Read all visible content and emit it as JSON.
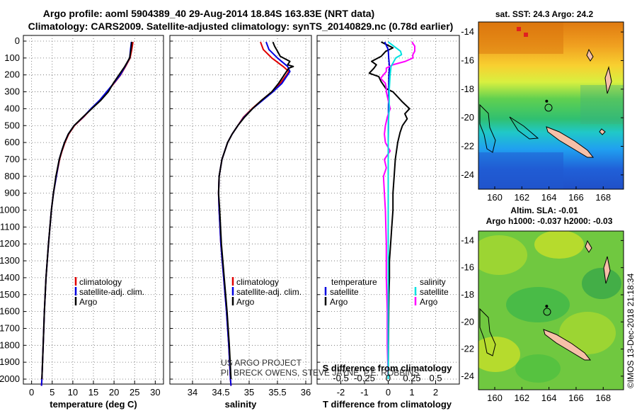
{
  "figure": {
    "title_line1": "Argo profile: aoml 5904389_40 29-Aug-2014 18.84S 163.83E (NRT data)",
    "title_line2": "Climatology: CARS2009. Satellite-adjusted climatology: synTS_20140829.nc (0.78d earlier)",
    "credit_line1": "US ARGO PROJECT",
    "credit_line2": "PI: BRECK OWENS, STEVE JAYNE, P.E. ROBBINS",
    "footer_stamp": "©IMOS 13-Dec-2018 21:18:34",
    "depth_ticks": [
      "0",
      "100",
      "200",
      "300",
      "400",
      "500",
      "600",
      "700",
      "800",
      "900",
      "1000",
      "1100",
      "1200",
      "1300",
      "1400",
      "1500",
      "1600",
      "1700",
      "1800",
      "1900",
      "2000"
    ]
  },
  "colors": {
    "climatology": "#e00000",
    "satellite": "#0000e0",
    "argo": "#000000",
    "sat_salinity": "#00e0e0",
    "argo_salinity": "#ff00ff"
  },
  "legend": {
    "climatology": "climatology",
    "satellite_adj": "satellite-adj. clim.",
    "argo": "Argo",
    "temperature": "temperature",
    "salinity": "salinity",
    "satellite": "satellite"
  },
  "chart_data": [
    {
      "type": "line",
      "title": "temperature profile",
      "xlabel": "temperature (deg C)",
      "ylabel": "depth",
      "xlim": [
        -2,
        32
      ],
      "ylim": [
        2050,
        0
      ],
      "xticks": [
        "0",
        "5",
        "10",
        "15",
        "20",
        "25",
        "30"
      ],
      "series": [
        {
          "name": "climatology",
          "depth": [
            5,
            50,
            100,
            150,
            200,
            250,
            300,
            350,
            400,
            450,
            500,
            550,
            600,
            650,
            700,
            800,
            900,
            1000,
            1200,
            1400,
            1600,
            1800,
            2000,
            2040
          ],
          "values": [
            24.6,
            24.3,
            23.9,
            22.8,
            21.6,
            20.0,
            18.3,
            16.6,
            14.5,
            12.6,
            10.4,
            9.0,
            8.1,
            7.4,
            6.8,
            6.0,
            5.3,
            4.8,
            4.1,
            3.5,
            3.1,
            2.8,
            2.5,
            2.4
          ]
        },
        {
          "name": "satellite-adj. clim.",
          "depth": [
            5,
            50,
            100,
            150,
            200,
            250,
            300,
            350,
            400,
            450,
            500,
            550,
            600,
            650,
            700,
            800,
            900,
            1000,
            1200,
            1400,
            1600,
            1800,
            2000,
            2040
          ],
          "values": [
            24.2,
            24.0,
            23.8,
            22.7,
            21.5,
            19.9,
            18.2,
            16.5,
            14.4,
            12.5,
            10.3,
            8.9,
            8.0,
            7.3,
            6.7,
            6.0,
            5.3,
            4.8,
            4.1,
            3.5,
            3.1,
            2.8,
            2.5,
            2.4
          ]
        },
        {
          "name": "Argo",
          "depth": [
            5,
            50,
            100,
            150,
            200,
            250,
            300,
            350,
            400,
            450,
            500,
            550,
            600,
            650,
            700,
            800,
            900,
            1000,
            1200,
            1400,
            1600,
            1800,
            2000
          ],
          "values": [
            24.3,
            24.1,
            23.8,
            22.6,
            21.2,
            19.8,
            18.6,
            16.8,
            14.6,
            12.4,
            10.3,
            8.9,
            8.0,
            7.3,
            6.7,
            5.9,
            5.3,
            4.8,
            4.1,
            3.5,
            3.1,
            2.8,
            2.5
          ]
        }
      ]
    },
    {
      "type": "line",
      "title": "salinity profile",
      "xlabel": "salinity",
      "ylabel": "depth",
      "xlim": [
        33.6,
        36.1
      ],
      "ylim": [
        2050,
        0
      ],
      "xticks": [
        "34",
        "34.5",
        "35",
        "35.5",
        "36"
      ],
      "series": [
        {
          "name": "climatology",
          "depth": [
            5,
            50,
            100,
            150,
            180,
            200,
            250,
            300,
            350,
            400,
            450,
            500,
            550,
            600,
            700,
            800,
            900,
            1000,
            1200,
            1400,
            1600,
            1800,
            2000,
            2040
          ],
          "values": [
            35.2,
            35.25,
            35.4,
            35.6,
            35.7,
            35.66,
            35.55,
            35.4,
            35.22,
            35.05,
            34.9,
            34.8,
            34.7,
            34.62,
            34.52,
            34.47,
            34.46,
            34.47,
            34.5,
            34.55,
            34.6,
            34.64,
            34.67,
            34.68
          ]
        },
        {
          "name": "satellite-adj. clim.",
          "depth": [
            5,
            50,
            100,
            150,
            180,
            200,
            250,
            300,
            350,
            400,
            450,
            500,
            550,
            600,
            700,
            800,
            900,
            1000,
            1200,
            1400,
            1600,
            1800,
            2000,
            2040
          ],
          "values": [
            35.3,
            35.35,
            35.5,
            35.68,
            35.72,
            35.68,
            35.58,
            35.42,
            35.24,
            35.06,
            34.91,
            34.8,
            34.7,
            34.62,
            34.52,
            34.47,
            34.46,
            34.47,
            34.5,
            34.55,
            34.6,
            34.64,
            34.67,
            34.68
          ]
        },
        {
          "name": "Argo",
          "depth": [
            5,
            30,
            60,
            90,
            120,
            140,
            150,
            160,
            180,
            200,
            250,
            300,
            350,
            400,
            450,
            500,
            550,
            600,
            700,
            800,
            900,
            1000,
            1200,
            1400,
            1600,
            1800,
            2000
          ],
          "values": [
            35.42,
            35.45,
            35.5,
            35.55,
            35.72,
            35.68,
            35.78,
            35.7,
            35.66,
            35.62,
            35.52,
            35.4,
            35.22,
            35.06,
            34.92,
            34.8,
            34.7,
            34.62,
            34.52,
            34.47,
            34.46,
            34.48,
            34.51,
            34.56,
            34.61,
            34.65,
            34.68
          ]
        }
      ]
    },
    {
      "type": "line",
      "title": "difference from climatology",
      "xlabel": "T difference from climatology",
      "xlabel_top": "S difference from climatology",
      "ylabel": "depth",
      "xlim": [
        -3,
        3
      ],
      "ylim": [
        2050,
        0
      ],
      "xticks": [
        "-2",
        "-1",
        "0",
        "1",
        "2"
      ],
      "xticks_top": [
        "-0.5",
        "-0.25",
        "0",
        "0.25",
        "0.5"
      ],
      "xticks_top_values": [
        -0.5,
        -0.25,
        0,
        0.25,
        0.5
      ],
      "series": [
        {
          "name": "temperature Argo",
          "axis": "T",
          "depth": [
            5,
            40,
            60,
            90,
            120,
            140,
            160,
            190,
            210,
            240,
            280,
            300,
            330,
            360,
            400,
            430,
            460,
            500,
            540,
            600,
            650,
            700,
            800,
            900,
            1000,
            1100,
            1200,
            1300,
            1400,
            1500,
            1600,
            1800,
            2000
          ],
          "values": [
            -0.3,
            0.2,
            -0.1,
            -0.3,
            -0.7,
            -0.5,
            -0.6,
            -0.8,
            -0.4,
            -0.3,
            -0.1,
            0.2,
            0.4,
            0.6,
            0.9,
            0.7,
            0.8,
            0.6,
            0.5,
            0.4,
            0.35,
            0.3,
            0.25,
            0.2,
            0.2,
            0.15,
            0.1,
            0.05,
            0.05,
            0.03,
            0.02,
            0.01,
            0.0
          ]
        },
        {
          "name": "temperature satellite",
          "axis": "T",
          "depth": [
            5,
            50,
            100,
            150,
            200,
            250,
            300,
            400,
            500,
            600,
            800,
            1000,
            1500,
            2000
          ],
          "values": [
            -0.15,
            0.0,
            0.02,
            0.05,
            0.03,
            0.02,
            0.02,
            0.01,
            0.01,
            0.0,
            0.0,
            0.0,
            0.0,
            0.0
          ]
        },
        {
          "name": "salinity Argo",
          "axis": "S",
          "depth": [
            5,
            30,
            60,
            80,
            100,
            120,
            140,
            160,
            180,
            200,
            220,
            250,
            280,
            300,
            350,
            400,
            450,
            500,
            550,
            600,
            650,
            700,
            750,
            800,
            900,
            1000,
            1200,
            1400,
            1600,
            1800,
            2000
          ],
          "values": [
            0.25,
            0.28,
            0.28,
            0.26,
            0.26,
            0.18,
            0.05,
            -0.02,
            -0.02,
            -0.05,
            -0.08,
            -0.03,
            -0.02,
            -0.02,
            0.0,
            0.02,
            -0.01,
            -0.03,
            -0.04,
            -0.03,
            0.02,
            -0.04,
            -0.02,
            -0.05,
            -0.04,
            -0.03,
            -0.02,
            -0.02,
            -0.01,
            -0.01,
            0.0
          ]
        },
        {
          "name": "salinity satellite",
          "axis": "S",
          "depth": [
            5,
            30,
            60,
            80,
            100,
            150,
            200,
            300,
            400,
            500,
            800,
            1000,
            1500,
            2000
          ],
          "values": [
            0.0,
            0.06,
            0.13,
            0.14,
            0.08,
            0.03,
            0.02,
            0.01,
            0.01,
            0.0,
            0.0,
            0.0,
            0.0,
            0.0
          ]
        }
      ]
    },
    {
      "type": "heatmap",
      "title": "sat. SST: 24.3 Argo: 24.2",
      "xticks": [
        "160",
        "162",
        "164",
        "166",
        "168"
      ],
      "yticks": [
        "-14",
        "-16",
        "-18",
        "-20",
        "-22",
        "-24"
      ],
      "xlim": [
        158.8,
        169.5
      ],
      "ylim": [
        -25,
        -13.3
      ],
      "argo_position": [
        163.83,
        -18.84
      ]
    },
    {
      "type": "heatmap",
      "title_line1": "Altim. SLA: -0.01",
      "title_line2": "Argo h1000: -0.037 h2000: -0.03",
      "xticks": [
        "160",
        "162",
        "164",
        "166",
        "168"
      ],
      "yticks": [
        "-14",
        "-16",
        "-18",
        "-20",
        "-22",
        "-24"
      ],
      "xlim": [
        158.8,
        169.5
      ],
      "ylim": [
        -25,
        -13.3
      ],
      "argo_position": [
        163.83,
        -18.84
      ]
    }
  ]
}
